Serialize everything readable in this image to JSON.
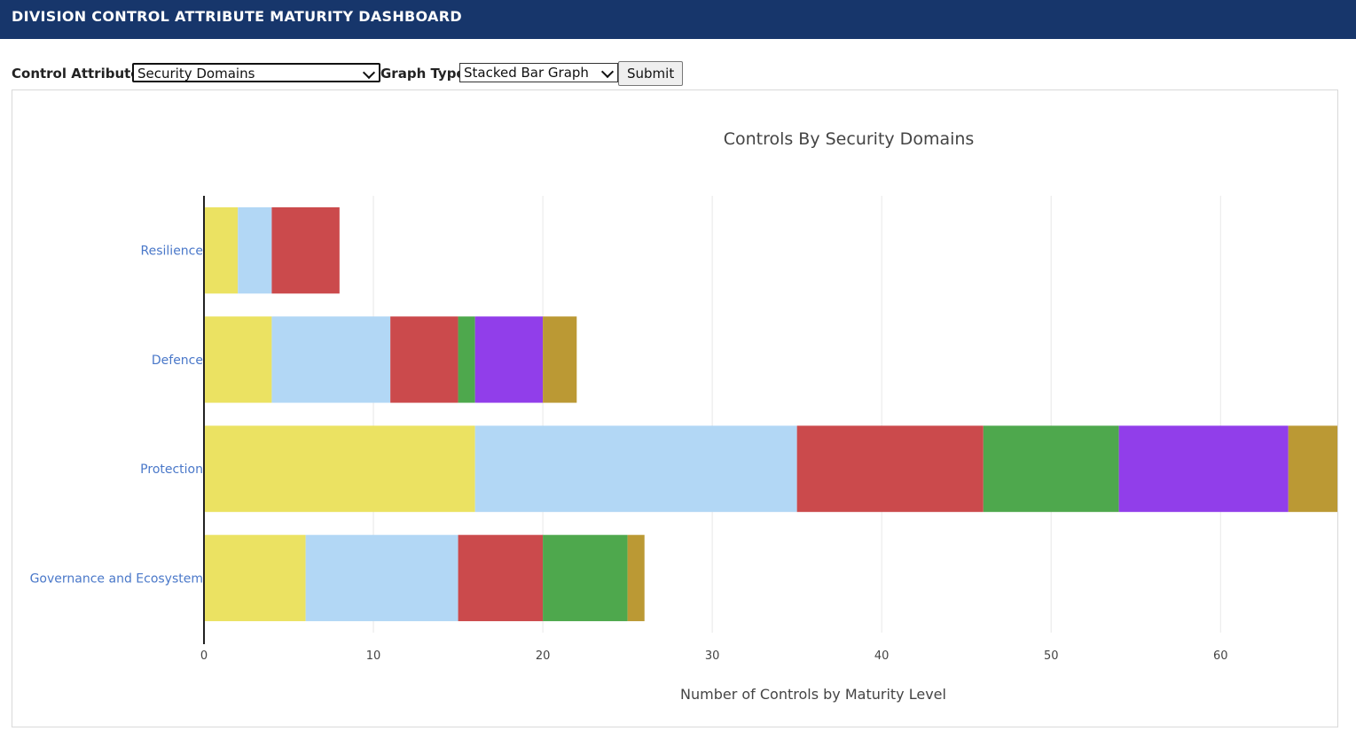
{
  "header": {
    "title": "DIVISION CONTROL ATTRIBUTE MATURITY DASHBOARD"
  },
  "form": {
    "control_attribute_label": "Control Attribute",
    "control_attribute_value": "Security Domains",
    "graph_type_label": "Graph Type",
    "graph_type_value": "Stacked Bar Graph",
    "submit_label": "Submit"
  },
  "chart_data": {
    "type": "bar",
    "orientation": "horizontal",
    "stacked": true,
    "title": "Controls By Security Domains",
    "xlabel": "Number of Controls by Maturity Level",
    "ylabel": "",
    "xlim": [
      0,
      67
    ],
    "xticks": [
      0,
      10,
      20,
      30,
      40,
      50,
      60
    ],
    "categories": [
      "Governance and Ecosystem",
      "Protection",
      "Defence",
      "Resilience"
    ],
    "grid": true,
    "legend": "none",
    "series": [
      {
        "color": "#ebe262",
        "values": [
          6,
          16,
          4,
          2
        ]
      },
      {
        "color": "#b2d7f5",
        "values": [
          9,
          19,
          7,
          2
        ]
      },
      {
        "color": "#cb4a4c",
        "values": [
          5,
          11,
          4,
          4
        ]
      },
      {
        "color": "#4ea84d",
        "values": [
          5,
          8,
          1,
          0
        ]
      },
      {
        "color": "#913eea",
        "values": [
          0,
          10,
          4,
          0
        ]
      },
      {
        "color": "#bb9934",
        "values": [
          1,
          3,
          2,
          0
        ]
      }
    ]
  }
}
